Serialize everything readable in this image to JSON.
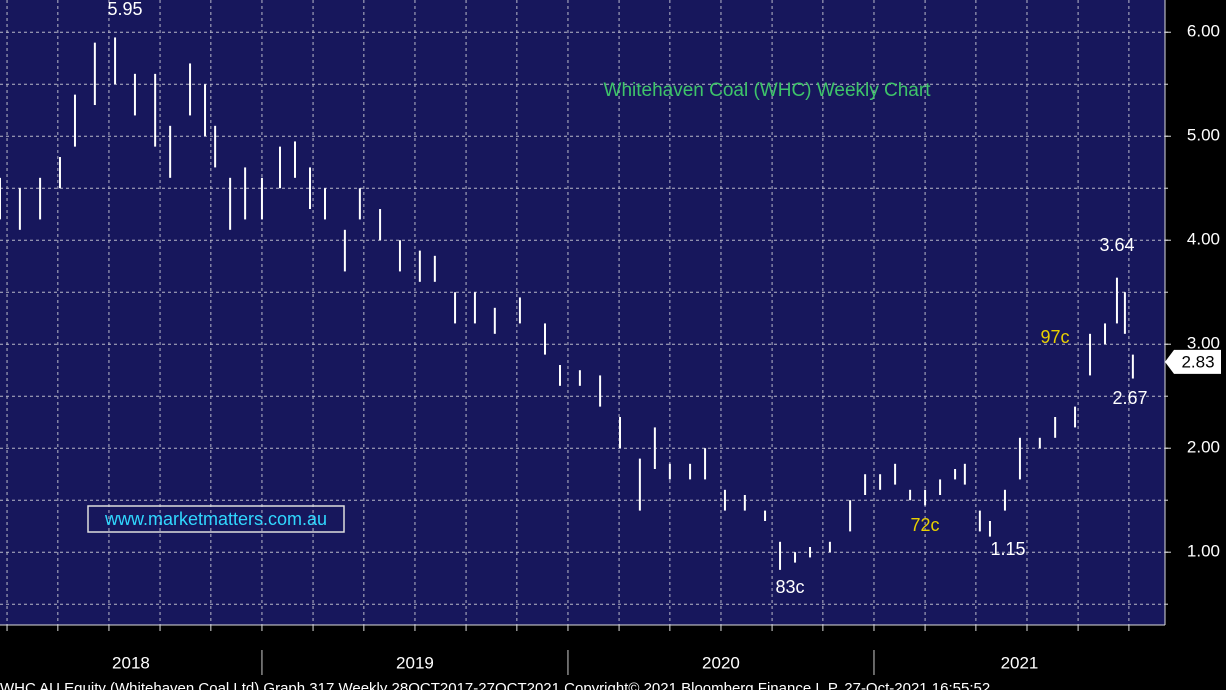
{
  "chart_data": {
    "type": "ohlc",
    "title": "Whitehaven Coal (WHC) Weekly Chart",
    "watermark": "www.marketmatters.com.au",
    "footer": "WHC AU Equity (Whitehaven Coal Ltd) Graph 317 Weekly 28OCT2017-27OCT2021 Copyright© 2021 Bloomberg Finance L.P. 27-Oct-2021 16:55:52",
    "x": [
      2018.144,
      2018.209,
      2018.275,
      2018.34,
      2018.389,
      2018.454,
      2018.52,
      2018.585,
      2018.651,
      2018.7,
      2018.765,
      2018.814,
      2018.847,
      2018.896,
      2018.945,
      2019.0,
      2019.059,
      2019.108,
      2019.157,
      2019.206,
      2019.271,
      2019.32,
      2019.386,
      2019.451,
      2019.516,
      2019.565,
      2019.631,
      2019.696,
      2019.761,
      2019.843,
      2019.925,
      2019.974,
      2020.039,
      2020.105,
      2020.17,
      2020.235,
      2020.284,
      2020.333,
      2020.399,
      2020.448,
      2020.513,
      2020.578,
      2020.644,
      2020.693,
      2020.742,
      2020.791,
      2020.856,
      2020.922,
      2020.971,
      2021.02,
      2021.069,
      2021.118,
      2021.167,
      2021.216,
      2021.265,
      2021.297,
      2021.346,
      2021.379,
      2021.428,
      2021.477,
      2021.542,
      2021.592,
      2021.657,
      2021.706,
      2021.755,
      2021.794,
      2021.82,
      2021.846
    ],
    "series": [
      {
        "name": "High",
        "color": "#ffffff",
        "values": [
          4.6,
          4.5,
          4.6,
          4.8,
          5.4,
          5.9,
          5.95,
          5.6,
          5.6,
          5.1,
          5.7,
          5.5,
          5.1,
          4.6,
          4.7,
          4.6,
          4.9,
          4.95,
          4.7,
          4.5,
          4.1,
          4.5,
          4.3,
          4.0,
          3.9,
          3.85,
          3.5,
          3.5,
          3.35,
          3.45,
          3.2,
          2.8,
          2.75,
          2.7,
          2.3,
          1.9,
          2.2,
          1.85,
          1.85,
          2.0,
          1.6,
          1.55,
          1.4,
          1.1,
          1.0,
          1.05,
          1.1,
          1.5,
          1.75,
          1.75,
          1.85,
          1.6,
          1.6,
          1.7,
          1.8,
          1.85,
          1.4,
          1.3,
          1.6,
          2.1,
          2.1,
          2.3,
          2.4,
          3.1,
          3.2,
          3.64,
          3.5,
          2.9
        ]
      },
      {
        "name": "Low",
        "color": "#ffffff",
        "values": [
          4.2,
          4.1,
          4.2,
          4.5,
          4.9,
          5.3,
          5.5,
          5.2,
          4.9,
          4.6,
          5.2,
          5.0,
          4.7,
          4.1,
          4.2,
          4.2,
          4.5,
          4.6,
          4.3,
          4.2,
          3.7,
          4.2,
          4.0,
          3.7,
          3.6,
          3.6,
          3.2,
          3.2,
          3.1,
          3.2,
          2.9,
          2.6,
          2.6,
          2.4,
          2.0,
          1.4,
          1.8,
          1.7,
          1.7,
          1.7,
          1.4,
          1.4,
          1.3,
          0.83,
          0.9,
          0.95,
          1.0,
          1.2,
          1.55,
          1.6,
          1.65,
          1.5,
          1.45,
          1.55,
          1.7,
          1.65,
          1.2,
          1.15,
          1.4,
          1.7,
          2.0,
          2.1,
          2.2,
          2.7,
          3.0,
          3.2,
          3.1,
          2.67
        ]
      }
    ],
    "xlim": [
      2018.144,
      2021.951
    ],
    "xticks": [
      2019,
      2020,
      2021
    ],
    "x_labels": [
      "2018",
      "2019",
      "2020",
      "2021"
    ],
    "xgrid": [
      2018.167,
      2018.333,
      2018.5,
      2018.667,
      2018.833,
      2019,
      2019.167,
      2019.333,
      2019.5,
      2019.667,
      2019.833,
      2020,
      2020.167,
      2020.333,
      2020.5,
      2020.667,
      2020.833,
      2021,
      2021.167,
      2021.333,
      2021.5,
      2021.667,
      2021.833
    ],
    "ylim": [
      0.3,
      6.31
    ],
    "yticks": [
      {
        "value": 1,
        "label": "1.00"
      },
      {
        "value": 2,
        "label": "2.00"
      },
      {
        "value": 3,
        "label": "3.00"
      },
      {
        "value": 4,
        "label": "4.00"
      },
      {
        "value": 5,
        "label": "5.00"
      },
      {
        "value": 6,
        "label": "6.00"
      }
    ],
    "ygrid": [
      0.5,
      1,
      1.5,
      2,
      2.5,
      3,
      3.5,
      4,
      4.5,
      5,
      5.5,
      6
    ],
    "grid": true,
    "last_price": 2.83,
    "annotations": [
      {
        "text": "5.95",
        "color": "#ffffff"
      },
      {
        "text": "3.64",
        "color": "#ffffff"
      },
      {
        "text": "97c",
        "color": "#e8d000"
      },
      {
        "text": "2.67",
        "color": "#ffffff"
      },
      {
        "text": "72c",
        "color": "#e8d000"
      },
      {
        "text": "1.15",
        "color": "#ffffff"
      },
      {
        "text": "83c",
        "color": "#ffffff"
      }
    ]
  }
}
